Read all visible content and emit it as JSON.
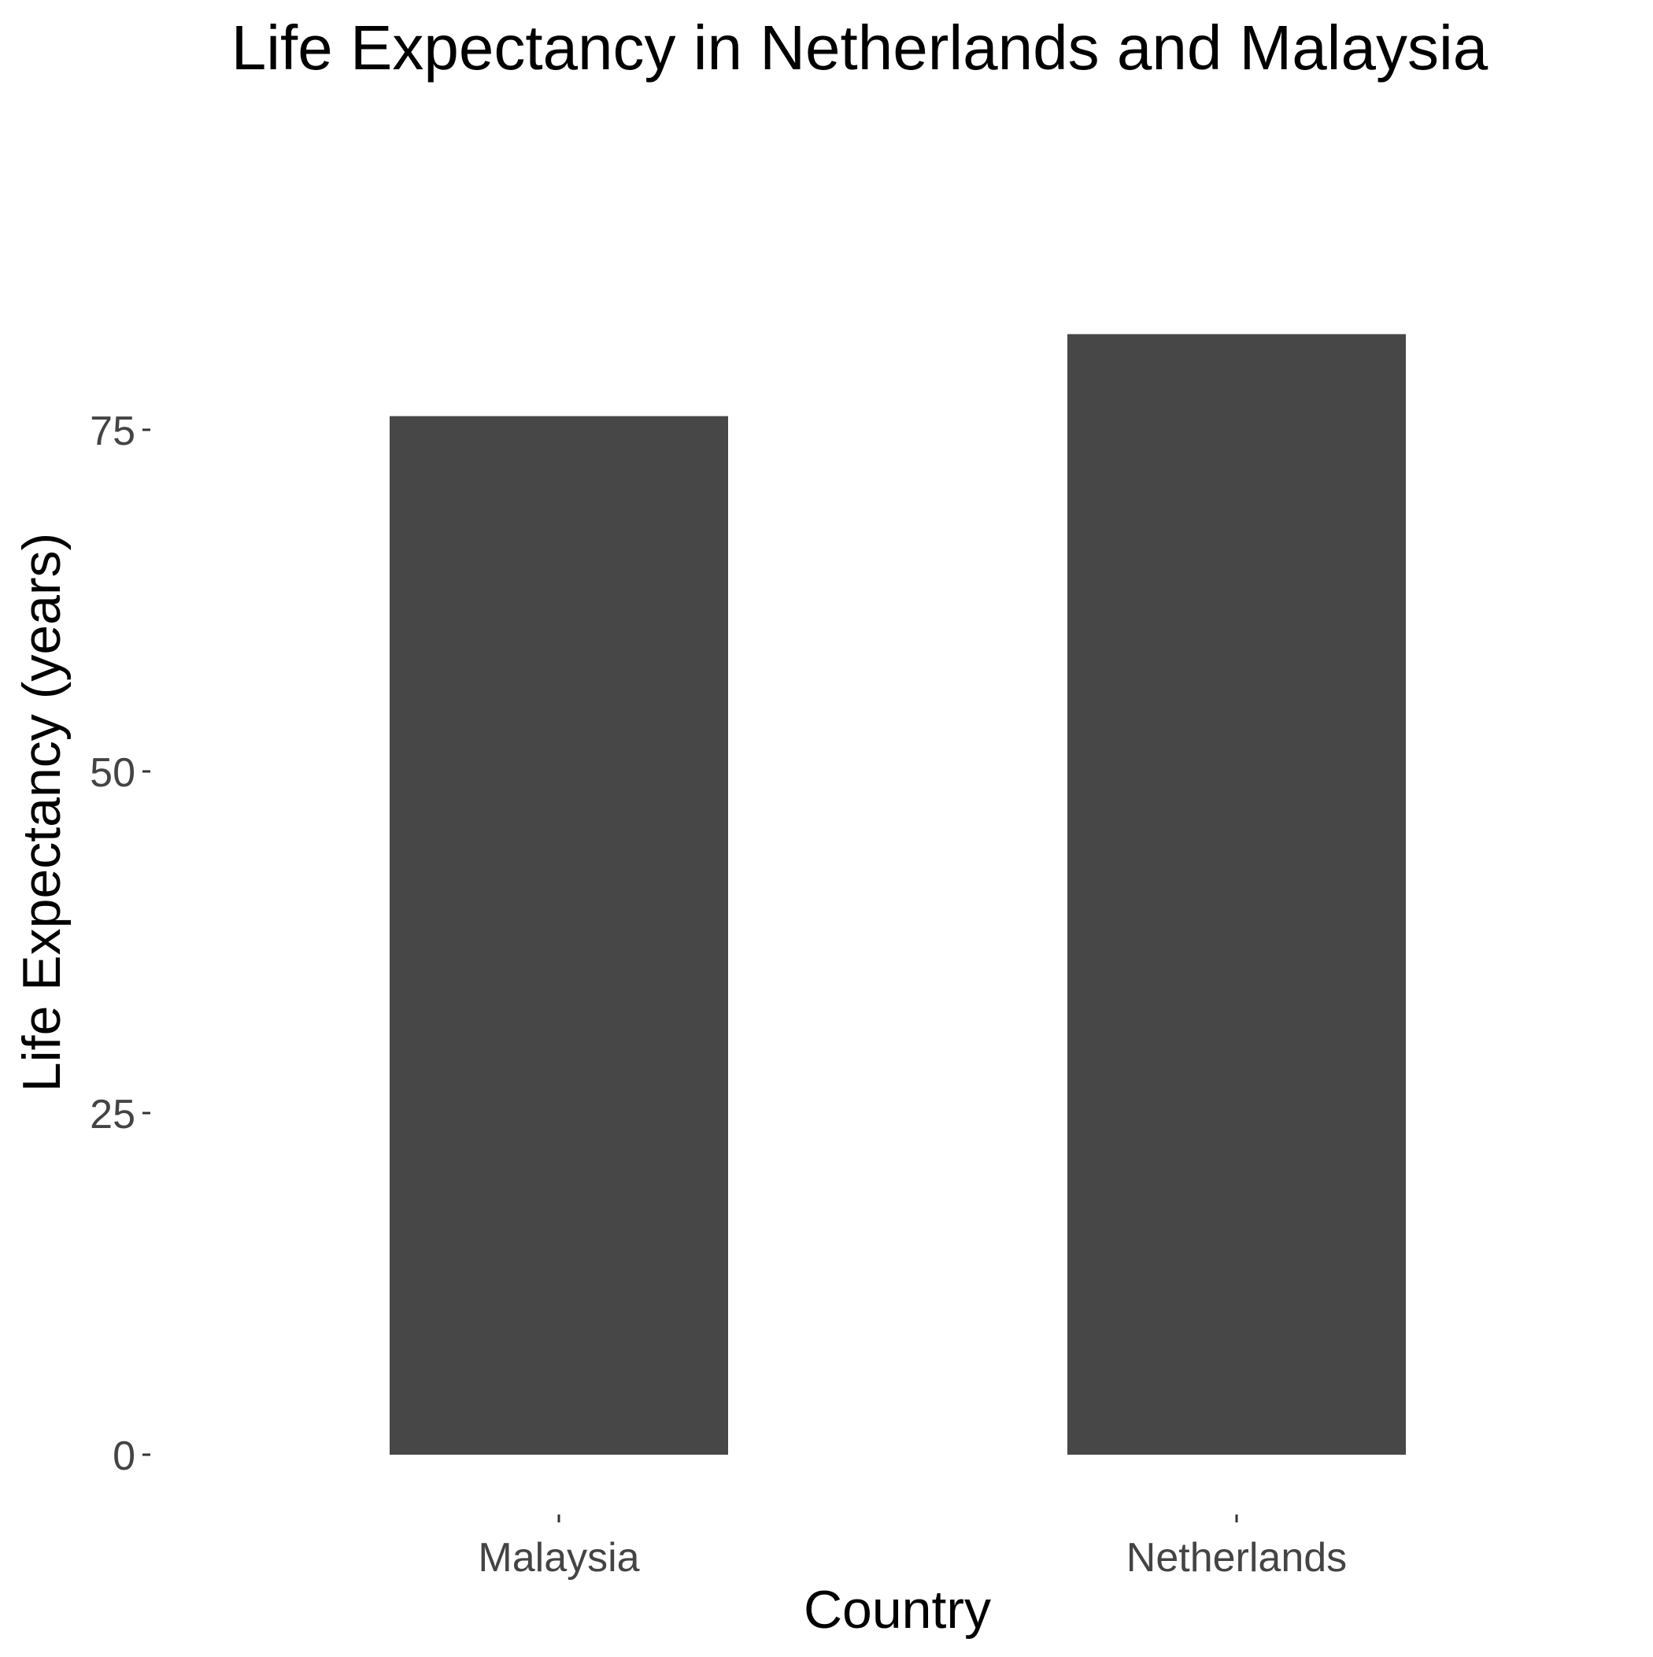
{
  "chart_data": {
    "type": "bar",
    "title": "Life Expectancy in Netherlands and Malaysia",
    "xlabel": "Country",
    "ylabel": "Life Expectancy (years)",
    "categories": [
      "Malaysia",
      "Netherlands"
    ],
    "values": [
      76,
      82
    ],
    "ylim": [
      0,
      85
    ],
    "yticks": [
      0,
      25,
      50,
      75
    ],
    "ytick_labels": [
      "0",
      "25",
      "50",
      "75"
    ],
    "bar_color": "#474747",
    "background": "#ffffff",
    "grid": false,
    "legend": "none"
  }
}
